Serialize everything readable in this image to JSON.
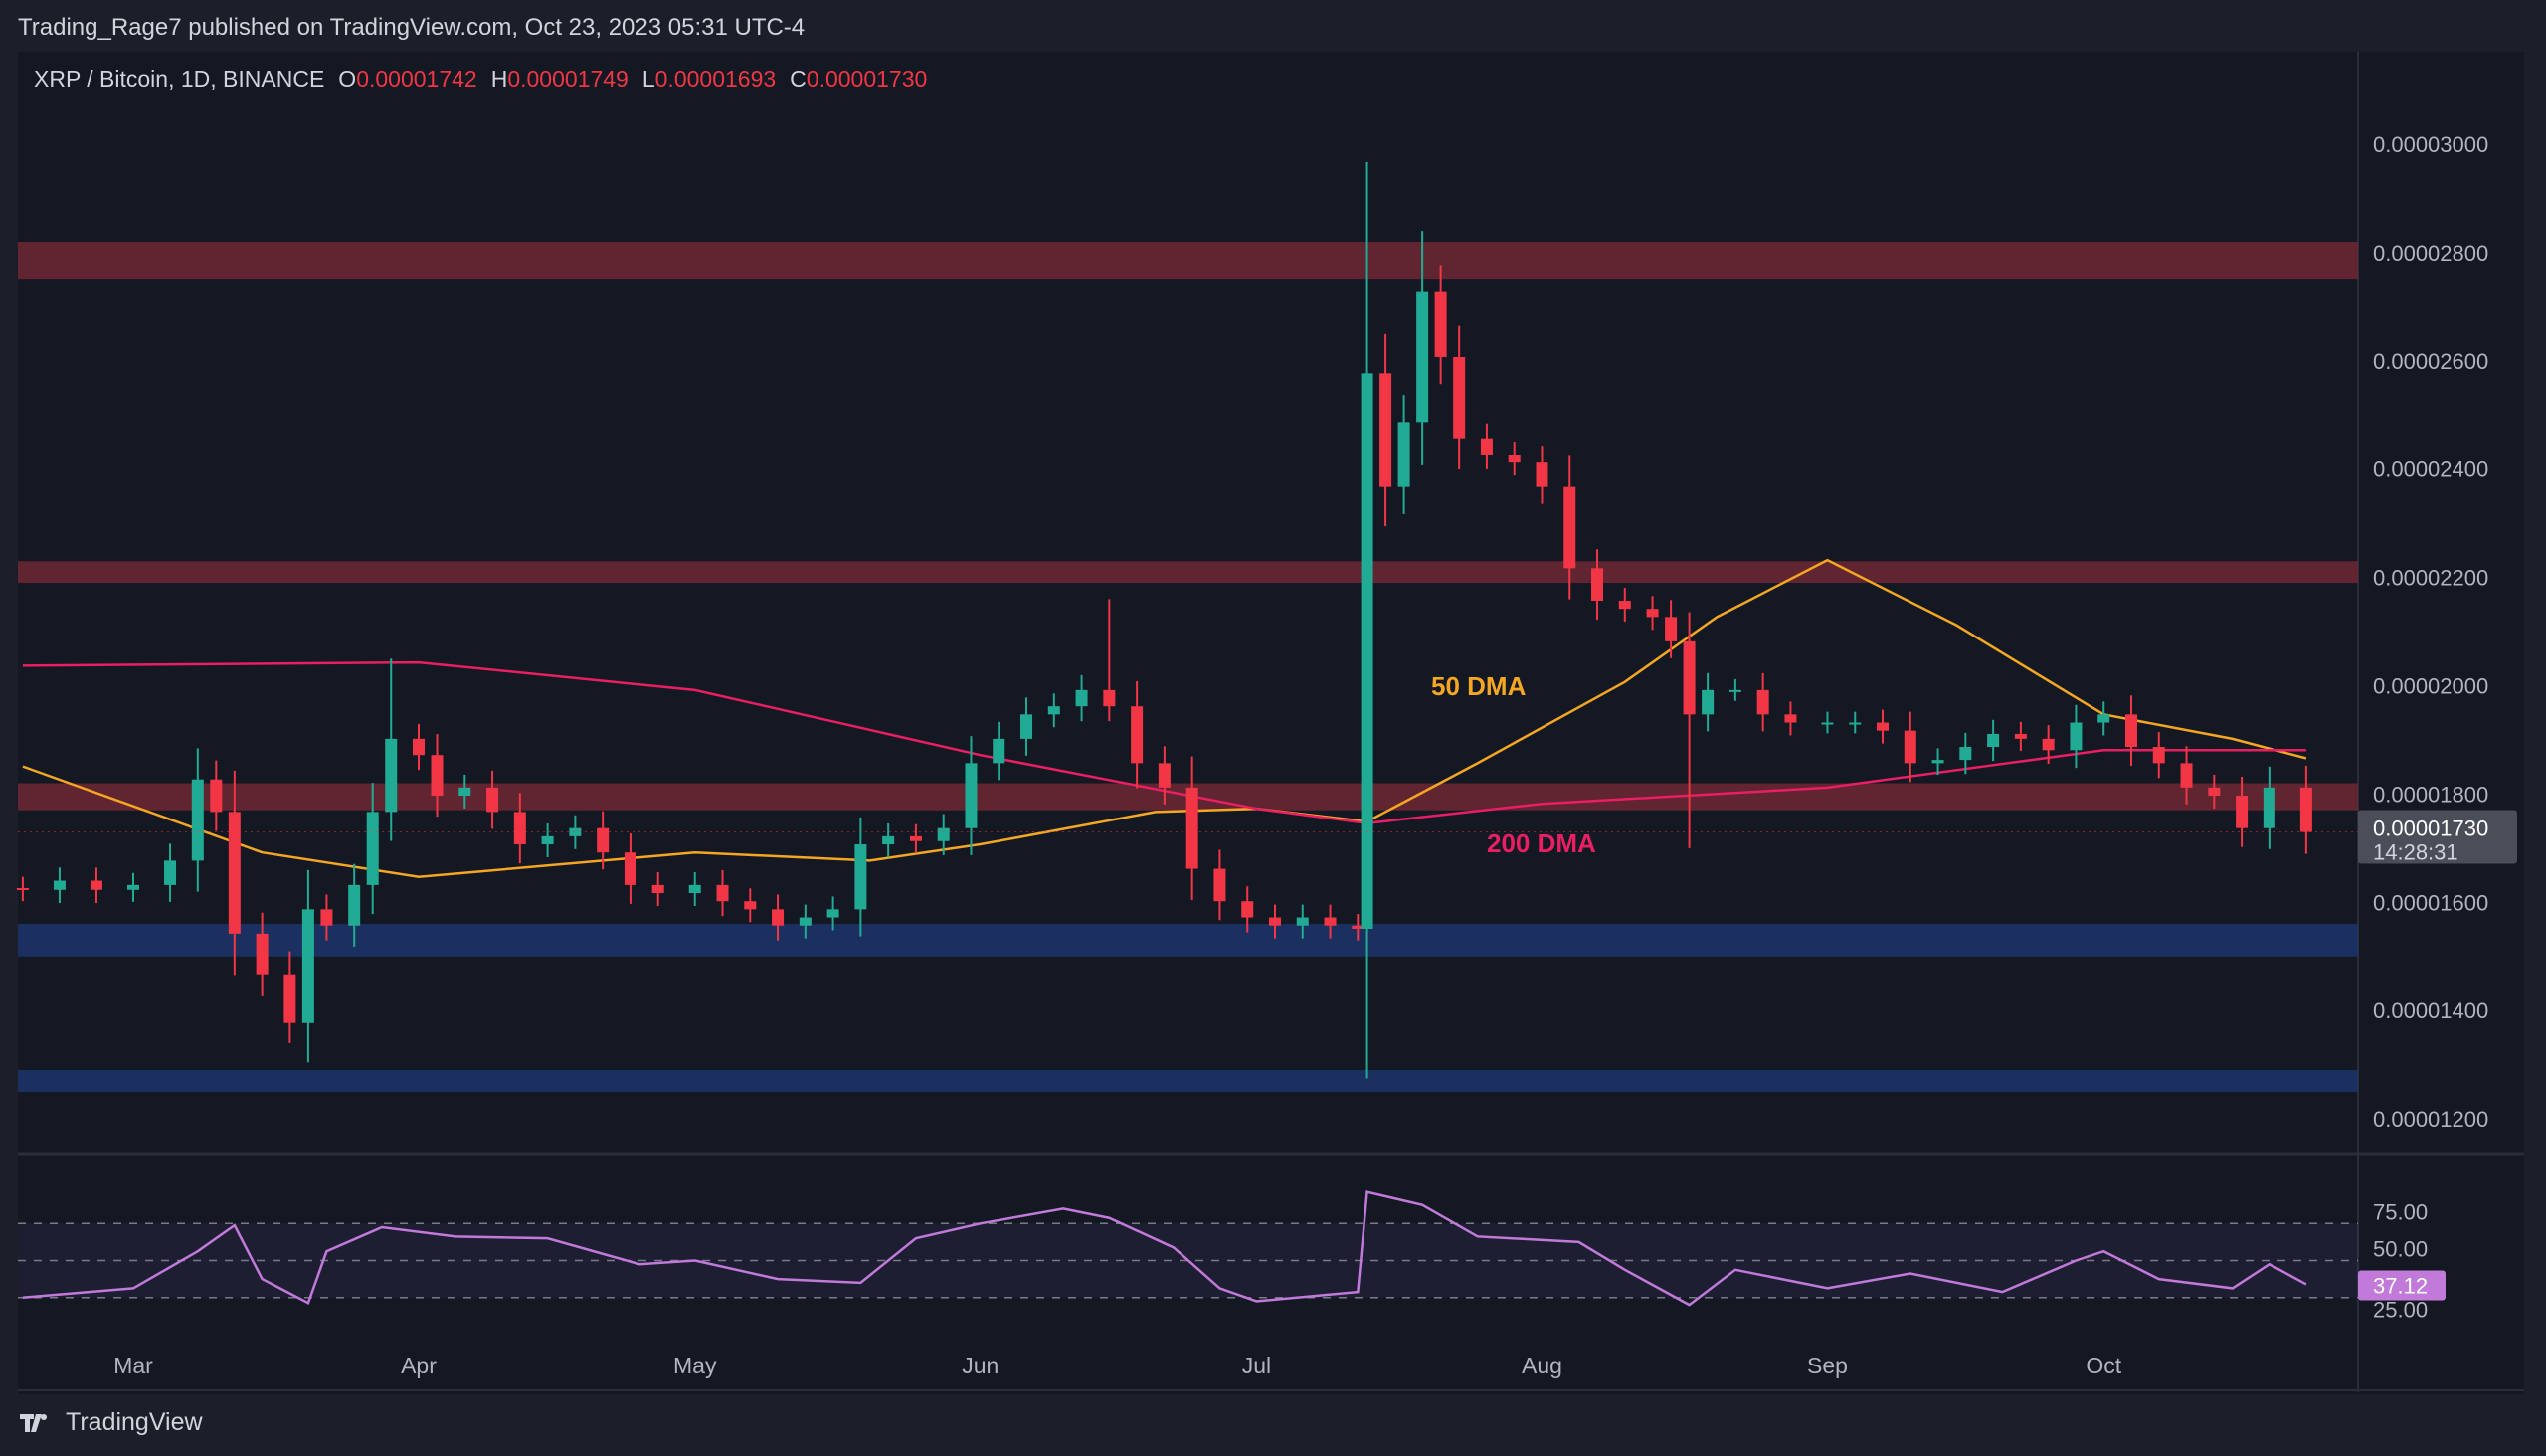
{
  "publisher_line": "Trading_Rage7 published on TradingView.com, Oct 23, 2023 05:31 UTC-4",
  "legend": {
    "symbol": "XRP / Bitcoin, 1D, BINANCE",
    "o_label": "O",
    "o": "0.00001742",
    "h_label": "H",
    "h": "0.00001749",
    "l_label": "L",
    "l": "0.00001693",
    "c_label": "C",
    "c": "0.00001730"
  },
  "footer": {
    "brand": "TradingView"
  },
  "colors": {
    "up": "#22ab94",
    "down": "#f23645",
    "ma50": "#f5a623",
    "ma200": "#e91e63",
    "rsi": "#c17ad9",
    "resistance": "#7a2a35",
    "support": "#1e3a7a"
  },
  "chart_data": {
    "type": "candlestick",
    "price_axis": {
      "ticks": [
        "0.00003000",
        "0.00002800",
        "0.00002600",
        "0.00002400",
        "0.00002200",
        "0.00002000",
        "0.00001800",
        "0.00001600",
        "0.00001400",
        "0.00001200"
      ],
      "range": [
        1.18e-05,
        3.13e-05
      ]
    },
    "last_price": {
      "value": "0.00001730",
      "countdown": "14:28:31"
    },
    "x_ticks": [
      {
        "label": "Mar",
        "date": "2023-03-01"
      },
      {
        "label": "Apr",
        "date": "2023-04-01"
      },
      {
        "label": "May",
        "date": "2023-05-01"
      },
      {
        "label": "Jun",
        "date": "2023-06-01"
      },
      {
        "label": "Jul",
        "date": "2023-07-01"
      },
      {
        "label": "Aug",
        "date": "2023-08-01"
      },
      {
        "label": "Sep",
        "date": "2023-09-01"
      },
      {
        "label": "Oct",
        "date": "2023-10-01"
      }
    ],
    "zones": [
      {
        "kind": "resistance",
        "from": 2.75e-05,
        "to": 2.82e-05
      },
      {
        "kind": "resistance",
        "from": 2.19e-05,
        "to": 2.23e-05
      },
      {
        "kind": "resistance",
        "from": 1.77e-05,
        "to": 1.82e-05
      },
      {
        "kind": "support",
        "from": 1.5e-05,
        "to": 1.56e-05
      },
      {
        "kind": "support",
        "from": 1.25e-05,
        "to": 1.29e-05
      }
    ],
    "closes": [
      [
        "2023-02-17",
        1.623e-05
      ],
      [
        "2023-02-21",
        1.64e-05
      ],
      [
        "2023-02-25",
        1.623e-05
      ],
      [
        "2023-03-01",
        1.632e-05
      ],
      [
        "2023-03-05",
        1.677e-05
      ],
      [
        "2023-03-08",
        1.827e-05
      ],
      [
        "2023-03-10",
        1.767e-05
      ],
      [
        "2023-03-12",
        1.542e-05
      ],
      [
        "2023-03-15",
        1.467e-05
      ],
      [
        "2023-03-18",
        1.377e-05
      ],
      [
        "2023-03-20",
        1.587e-05
      ],
      [
        "2023-03-22",
        1.557e-05
      ],
      [
        "2023-03-25",
        1.632e-05
      ],
      [
        "2023-03-27",
        1.767e-05
      ],
      [
        "2023-03-29",
        1.902e-05
      ],
      [
        "2023-04-01",
        1.872e-05
      ],
      [
        "2023-04-03",
        1.797e-05
      ],
      [
        "2023-04-06",
        1.812e-05
      ],
      [
        "2023-04-09",
        1.767e-05
      ],
      [
        "2023-04-12",
        1.707e-05
      ],
      [
        "2023-04-15",
        1.722e-05
      ],
      [
        "2023-04-18",
        1.737e-05
      ],
      [
        "2023-04-21",
        1.692e-05
      ],
      [
        "2023-04-24",
        1.632e-05
      ],
      [
        "2023-04-27",
        1.617e-05
      ],
      [
        "2023-05-01",
        1.632e-05
      ],
      [
        "2023-05-04",
        1.602e-05
      ],
      [
        "2023-05-07",
        1.587e-05
      ],
      [
        "2023-05-10",
        1.557e-05
      ],
      [
        "2023-05-13",
        1.572e-05
      ],
      [
        "2023-05-16",
        1.587e-05
      ],
      [
        "2023-05-19",
        1.707e-05
      ],
      [
        "2023-05-22",
        1.722e-05
      ],
      [
        "2023-05-25",
        1.713e-05
      ],
      [
        "2023-05-28",
        1.737e-05
      ],
      [
        "2023-05-31",
        1.857e-05
      ],
      [
        "2023-06-03",
        1.902e-05
      ],
      [
        "2023-06-06",
        1.947e-05
      ],
      [
        "2023-06-09",
        1.962e-05
      ],
      [
        "2023-06-12",
        1.992e-05
      ],
      [
        "2023-06-15",
        1.962e-05
      ],
      [
        "2023-06-18",
        1.857e-05
      ],
      [
        "2023-06-21",
        1.812e-05
      ],
      [
        "2023-06-24",
        1.662e-05
      ],
      [
        "2023-06-27",
        1.602e-05
      ],
      [
        "2023-06-30",
        1.572e-05
      ],
      [
        "2023-07-03",
        1.557e-05
      ],
      [
        "2023-07-06",
        1.572e-05
      ],
      [
        "2023-07-09",
        1.557e-05
      ],
      [
        "2023-07-12",
        1.551e-05
      ],
      [
        "2023-07-13",
        2.577e-05
      ],
      [
        "2023-07-15",
        2.367e-05
      ],
      [
        "2023-07-17",
        2.487e-05
      ],
      [
        "2023-07-19",
        2.727e-05
      ],
      [
        "2023-07-21",
        2.607e-05
      ],
      [
        "2023-07-23",
        2.457e-05
      ],
      [
        "2023-07-26",
        2.427e-05
      ],
      [
        "2023-07-29",
        2.412e-05
      ],
      [
        "2023-08-01",
        2.367e-05
      ],
      [
        "2023-08-04",
        2.217e-05
      ],
      [
        "2023-08-07",
        2.157e-05
      ],
      [
        "2023-08-10",
        2.142e-05
      ],
      [
        "2023-08-13",
        2.127e-05
      ],
      [
        "2023-08-15",
        2.082e-05
      ],
      [
        "2023-08-17",
        1.947e-05
      ],
      [
        "2023-08-19",
        1.992e-05
      ],
      [
        "2023-08-22",
        1.992e-05
      ],
      [
        "2023-08-25",
        1.947e-05
      ],
      [
        "2023-08-28",
        1.932e-05
      ],
      [
        "2023-09-01",
        1.932e-05
      ],
      [
        "2023-09-04",
        1.932e-05
      ],
      [
        "2023-09-07",
        1.917e-05
      ],
      [
        "2023-09-10",
        1.857e-05
      ],
      [
        "2023-09-13",
        1.863e-05
      ],
      [
        "2023-09-16",
        1.887e-05
      ],
      [
        "2023-09-19",
        1.911e-05
      ],
      [
        "2023-09-22",
        1.902e-05
      ],
      [
        "2023-09-25",
        1.881e-05
      ],
      [
        "2023-09-28",
        1.932e-05
      ],
      [
        "2023-10-01",
        1.947e-05
      ],
      [
        "2023-10-04",
        1.887e-05
      ],
      [
        "2023-10-07",
        1.857e-05
      ],
      [
        "2023-10-10",
        1.812e-05
      ],
      [
        "2023-10-13",
        1.797e-05
      ],
      [
        "2023-10-16",
        1.737e-05
      ],
      [
        "2023-10-19",
        1.812e-05
      ],
      [
        "2023-10-23",
        1.73e-05
      ]
    ],
    "notable_highs": [
      [
        "2023-07-13",
        2.967e-05
      ],
      [
        "2023-07-19",
        2.84e-05
      ],
      [
        "2023-06-15",
        2.16e-05
      ],
      [
        "2023-03-29",
        2.05e-05
      ]
    ],
    "notable_lows": [
      [
        "2023-08-17",
        1.7e-05
      ],
      [
        "2023-03-18",
        1.34e-05
      ]
    ],
    "series": [
      {
        "name": "50 DMA",
        "points": [
          [
            "2023-02-17",
            1.851e-05
          ],
          [
            "2023-03-15",
            1.692e-05
          ],
          [
            "2023-04-01",
            1.647e-05
          ],
          [
            "2023-05-01",
            1.692e-05
          ],
          [
            "2023-05-20",
            1.677e-05
          ],
          [
            "2023-06-01",
            1.707e-05
          ],
          [
            "2023-06-20",
            1.767e-05
          ],
          [
            "2023-07-01",
            1.773e-05
          ],
          [
            "2023-07-13",
            1.749e-05
          ],
          [
            "2023-07-25",
            1.857e-05
          ],
          [
            "2023-08-10",
            2.007e-05
          ],
          [
            "2023-08-20",
            2.127e-05
          ],
          [
            "2023-09-01",
            2.232e-05
          ],
          [
            "2023-09-15",
            2.112e-05
          ],
          [
            "2023-10-01",
            1.947e-05
          ],
          [
            "2023-10-15",
            1.902e-05
          ],
          [
            "2023-10-23",
            1.866e-05
          ]
        ]
      },
      {
        "name": "200 DMA",
        "points": [
          [
            "2023-02-17",
            2.037e-05
          ],
          [
            "2023-04-01",
            2.043e-05
          ],
          [
            "2023-05-01",
            1.992e-05
          ],
          [
            "2023-06-01",
            1.872e-05
          ],
          [
            "2023-07-01",
            1.773e-05
          ],
          [
            "2023-07-13",
            1.746e-05
          ],
          [
            "2023-08-01",
            1.782e-05
          ],
          [
            "2023-09-01",
            1.812e-05
          ],
          [
            "2023-10-01",
            1.881e-05
          ],
          [
            "2023-10-23",
            1.881e-05
          ]
        ]
      }
    ],
    "rsi": {
      "ticks": [
        "75.00",
        "50.00",
        "25.00"
      ],
      "levels": [
        70,
        50,
        30
      ],
      "last": "37.12",
      "points": [
        [
          "2023-02-17",
          30
        ],
        [
          "2023-03-01",
          35
        ],
        [
          "2023-03-08",
          55
        ],
        [
          "2023-03-12",
          69
        ],
        [
          "2023-03-15",
          40
        ],
        [
          "2023-03-20",
          27
        ],
        [
          "2023-03-22",
          55
        ],
        [
          "2023-03-28",
          68
        ],
        [
          "2023-04-05",
          63
        ],
        [
          "2023-04-15",
          62
        ],
        [
          "2023-04-25",
          48
        ],
        [
          "2023-05-01",
          50
        ],
        [
          "2023-05-10",
          40
        ],
        [
          "2023-05-19",
          38
        ],
        [
          "2023-05-25",
          62
        ],
        [
          "2023-06-01",
          70
        ],
        [
          "2023-06-10",
          78
        ],
        [
          "2023-06-15",
          73
        ],
        [
          "2023-06-22",
          57
        ],
        [
          "2023-06-27",
          35
        ],
        [
          "2023-07-01",
          28
        ],
        [
          "2023-07-12",
          33
        ],
        [
          "2023-07-13",
          87
        ],
        [
          "2023-07-19",
          80
        ],
        [
          "2023-07-25",
          63
        ],
        [
          "2023-08-05",
          60
        ],
        [
          "2023-08-10",
          45
        ],
        [
          "2023-08-17",
          26
        ],
        [
          "2023-08-22",
          45
        ],
        [
          "2023-09-01",
          35
        ],
        [
          "2023-09-10",
          43
        ],
        [
          "2023-09-20",
          33
        ],
        [
          "2023-09-28",
          50
        ],
        [
          "2023-10-01",
          55
        ],
        [
          "2023-10-07",
          40
        ],
        [
          "2023-10-15",
          35
        ],
        [
          "2023-10-19",
          48
        ],
        [
          "2023-10-23",
          37.12
        ]
      ]
    }
  }
}
